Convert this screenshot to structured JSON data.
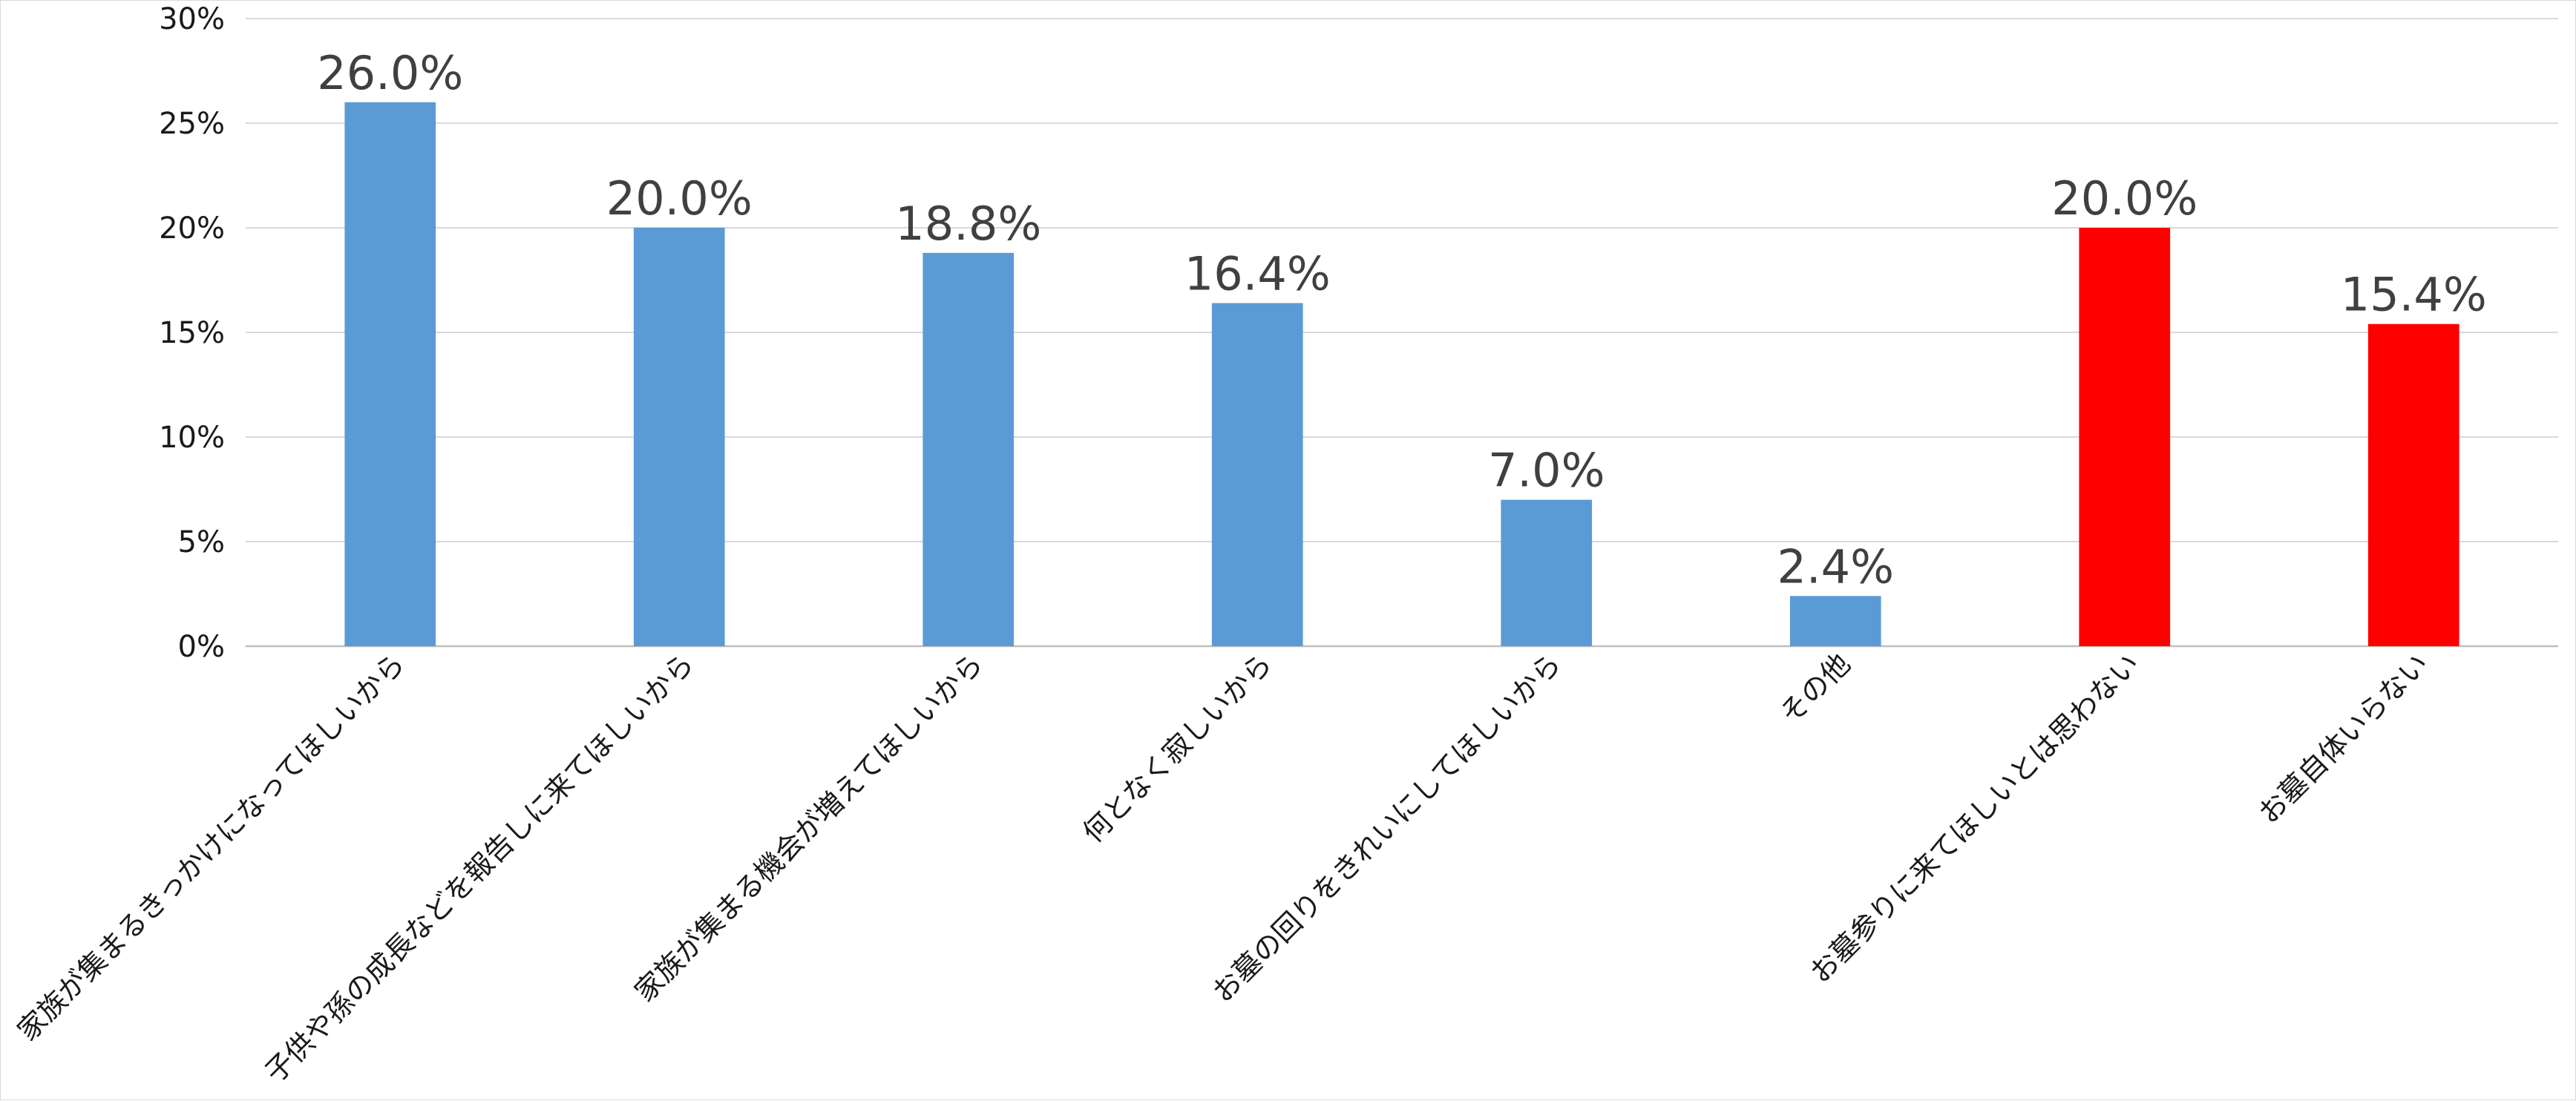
{
  "chart_data": {
    "type": "bar",
    "title": "",
    "xlabel": "",
    "ylabel": "",
    "ylim": [
      0,
      30
    ],
    "yticks": [
      {
        "value": 0,
        "label": "0%"
      },
      {
        "value": 5,
        "label": "5%"
      },
      {
        "value": 10,
        "label": "10%"
      },
      {
        "value": 15,
        "label": "15%"
      },
      {
        "value": 20,
        "label": "20%"
      },
      {
        "value": 25,
        "label": "25%"
      },
      {
        "value": 30,
        "label": "30%"
      }
    ],
    "grid": true,
    "legend": "none",
    "categories": [
      "家族が集まるきっかけになってほしいから",
      "子供や孫の成長などを報告しに来てほしいから",
      "家族が集まる機会が増えてほしいから",
      "何となく寂しいから",
      "お墓の回りをきれいにしてほしいから",
      "その他",
      "お墓参りに来てほしいとは思わない",
      "お墓自体いらない"
    ],
    "values": [
      26.0,
      20.0,
      18.8,
      16.4,
      7.0,
      2.4,
      20.0,
      15.4
    ],
    "data_labels": [
      "26.0%",
      "20.0%",
      "18.8%",
      "16.4%",
      "7.0%",
      "2.4%",
      "20.0%",
      "15.4%"
    ],
    "bar_colors": [
      "#5b9bd5",
      "#5b9bd5",
      "#5b9bd5",
      "#5b9bd5",
      "#5b9bd5",
      "#5b9bd5",
      "#ff0000",
      "#ff0000"
    ]
  }
}
